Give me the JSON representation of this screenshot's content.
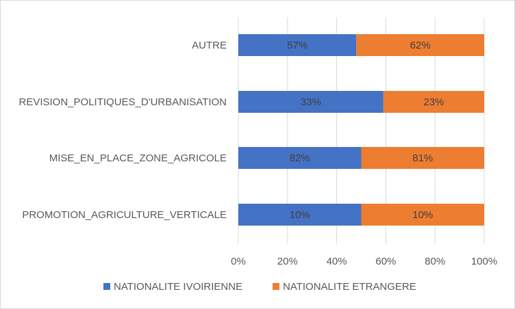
{
  "chart_data": {
    "type": "bar",
    "orientation": "horizontal",
    "stacked": "percent",
    "categories": [
      "AUTRE",
      "REVISION_POLITIQUES_D'URBANISATION",
      "MISE_EN_PLACE_ZONE_AGRICOLE",
      "PROMOTION_AGRICULTURE_VERTICALE"
    ],
    "series": [
      {
        "name": "NATIONALITE IVOIRIENNE",
        "color": "#4472c4",
        "labels": [
          "57%",
          "33%",
          "82%",
          "10%"
        ],
        "share": [
          48,
          59,
          50,
          50
        ]
      },
      {
        "name": "NATIONALITE ETRANGERE",
        "color": "#ed7d31",
        "labels": [
          "62%",
          "23%",
          "81%",
          "10%"
        ],
        "share": [
          52,
          41,
          50,
          50
        ]
      }
    ],
    "x_ticks": [
      "0%",
      "20%",
      "40%",
      "60%",
      "80%",
      "100%"
    ],
    "xlim": [
      0,
      100
    ],
    "grid": true,
    "legend_position": "bottom",
    "title": "",
    "xlabel": "",
    "ylabel": ""
  }
}
